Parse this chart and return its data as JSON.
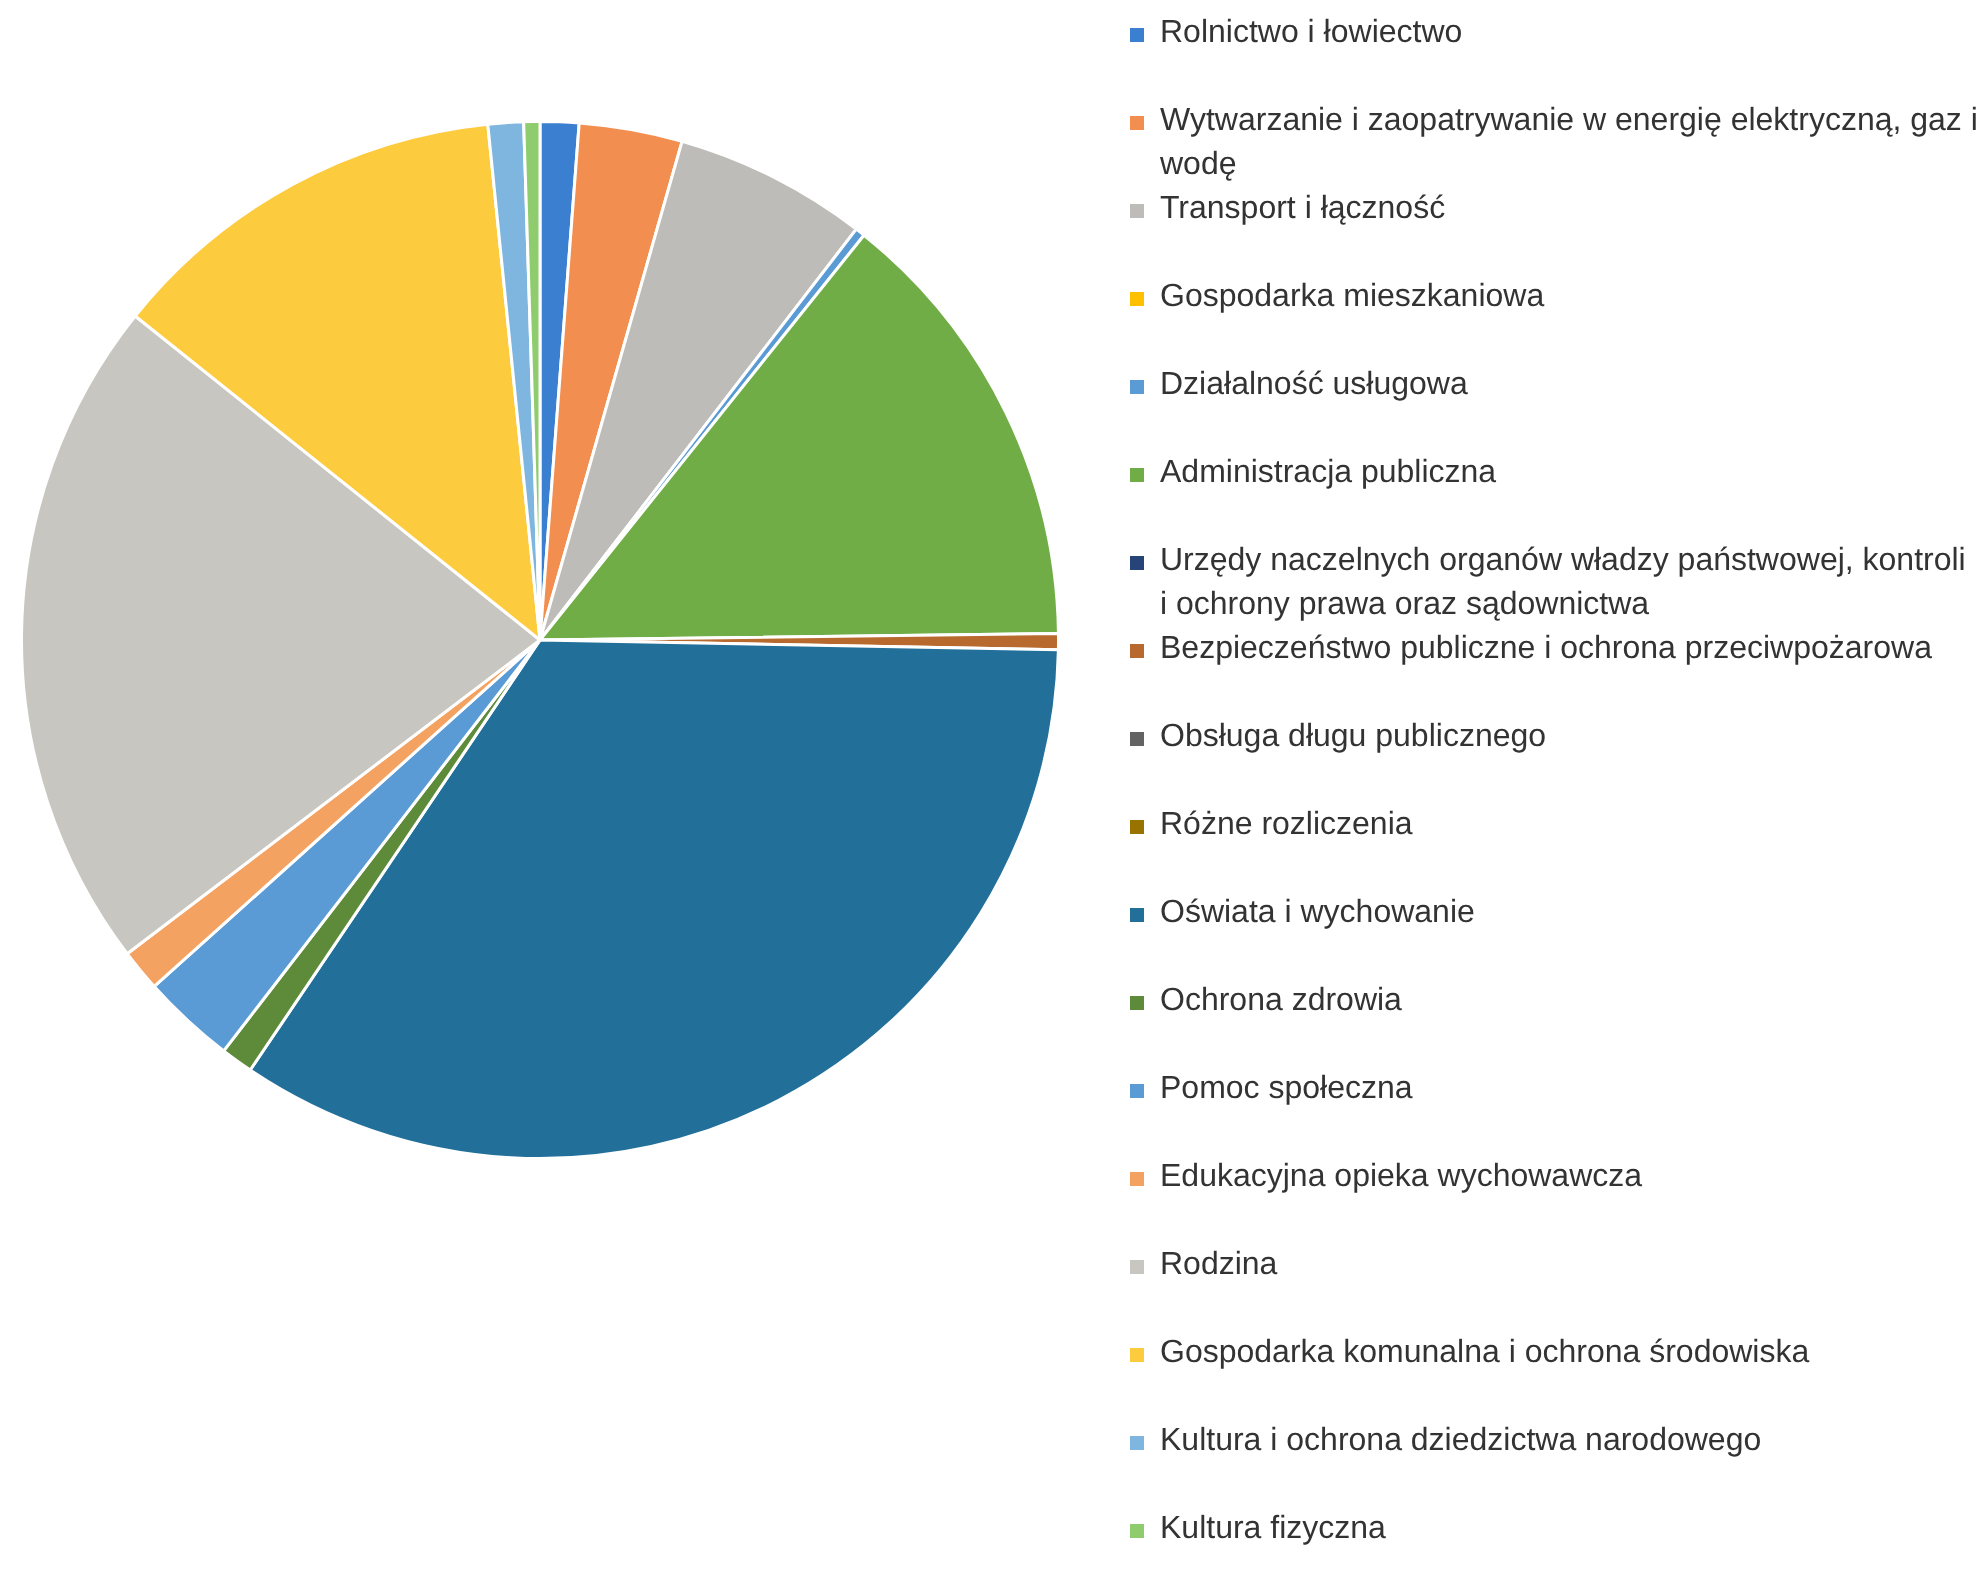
{
  "chart_data": {
    "type": "pie",
    "legend": "right",
    "categories": [
      "Rolnictwo i łowiectwo",
      "Wytwarzanie i zaopatrywanie w energię elektryczną, gaz i wodę",
      "Transport i łączność",
      "Gospodarka mieszkaniowa",
      "Działalność usługowa",
      "Administracja publiczna",
      "Urzędy naczelnych organów władzy państwowej, kontroli i ochrony prawa oraz sądownictwa",
      "Bezpieczeństwo publiczne i ochrona przeciwpożarowa",
      "Obsługa długu publicznego",
      "Różne rozliczenia",
      "Oświata i wychowanie",
      "Ochrona zdrowia",
      "Pomoc społeczna",
      "Edukacyjna opieka wychowawcza",
      "Rodzina",
      "Gospodarka komunalna i ochrona środowiska",
      "Kultura i ochrona dziedzictwa narodowego",
      "Kultura fizyczna"
    ],
    "values": [
      1.2,
      3.2,
      6.0,
      null,
      0.3,
      14.0,
      null,
      0.5,
      null,
      null,
      34.0,
      1.0,
      2.9,
      1.3,
      21.0,
      12.6,
      1.1,
      0.5
    ],
    "colors": [
      "#3a7fd0",
      "#f28e4f",
      "#bdbcb8",
      "#ffc000",
      "#5b9bd5",
      "#70ad47",
      "#264478",
      "#b86a2e",
      "#636363",
      "#997300",
      "#22709a",
      "#5e8b3a",
      "#5b9bd5",
      "#f4a261",
      "#c8c6c0",
      "#fdcb3e",
      "#7fb6e0",
      "#8fcc6e"
    ]
  }
}
